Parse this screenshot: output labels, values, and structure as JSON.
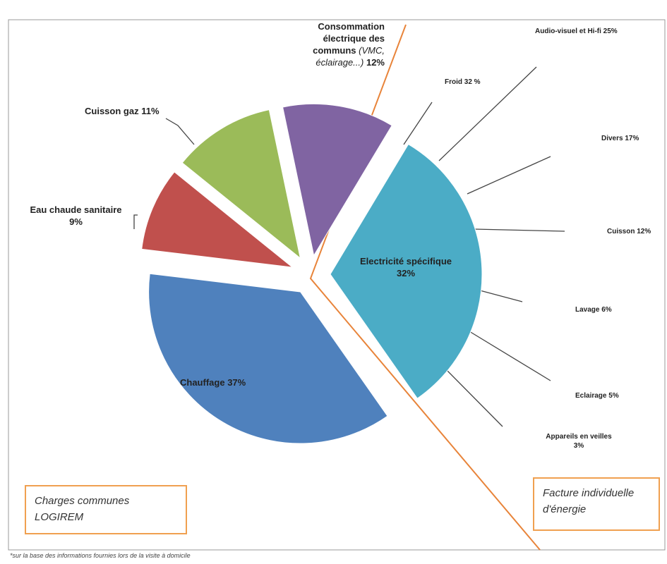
{
  "chart_data": {
    "type": "pie",
    "categories": [
      "Chauffage",
      "Eau chaude sanitaire",
      "Cuisson gaz",
      "Consommation électrique des communs",
      "Electricité spécifique"
    ],
    "values": [
      37,
      9,
      11,
      12,
      32
    ],
    "value_labels": [
      "37%",
      "9%",
      "11%",
      "12%",
      "32%"
    ],
    "colors": [
      "#4f81bd",
      "#c0504d",
      "#9bbb59",
      "#8064a2",
      "#4bacc6"
    ],
    "annotation": "(VMC, éclairage...)",
    "breakdown": [
      "Froid 32 %",
      "Audio-visuel et Hi-fi 25%",
      "Divers 17%",
      "Cuisson 12%",
      "Lavage 6%",
      "Eclairage 5%",
      "Appareils en veilles 3%"
    ],
    "box_left": "Charges communes LOGIREM",
    "box_right": "Facture individuelle d'énergie",
    "footnote": "*sur la base des informations fournies lors de la visite à domicile"
  }
}
